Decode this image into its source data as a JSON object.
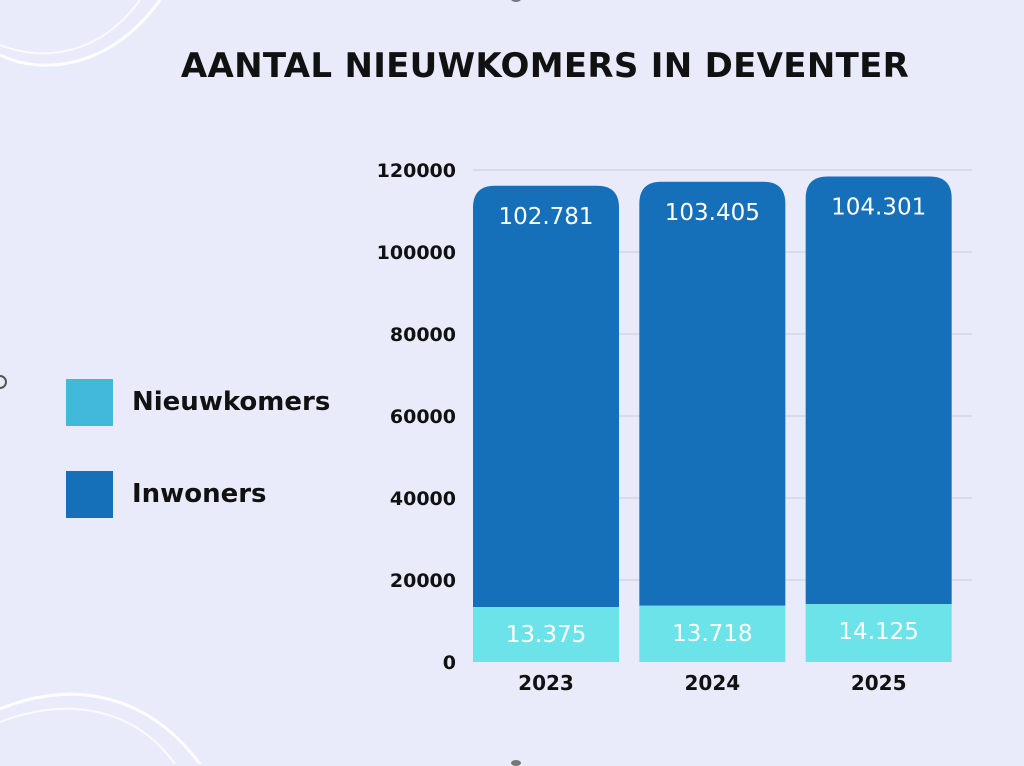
{
  "colors": {
    "background": "#e9ebfb",
    "inwoners": "#1570b9",
    "nieuwkomers": "#6ce3e8",
    "legend_nieuwkomers": "#42b9da",
    "gridline": "#cdd0e6"
  },
  "chart_data": {
    "type": "bar",
    "stacked": true,
    "title": "AANTAL NIEUWKOMERS IN DEVENTER",
    "categories": [
      "2023",
      "2024",
      "2025"
    ],
    "series": [
      {
        "name": "Nieuwkomers",
        "values": [
          13375,
          13718,
          14125
        ],
        "labels": [
          "13.375",
          "13.718",
          "14.125"
        ]
      },
      {
        "name": "Inwoners",
        "values": [
          102781,
          103405,
          104301
        ],
        "labels": [
          "102.781",
          "103.405",
          "104.301"
        ]
      }
    ],
    "ylim": [
      0,
      120000
    ],
    "yticks": [
      "0",
      "20000",
      "40000",
      "60000",
      "80000",
      "100000",
      "120000"
    ],
    "grid": true,
    "legend_position": "left"
  }
}
